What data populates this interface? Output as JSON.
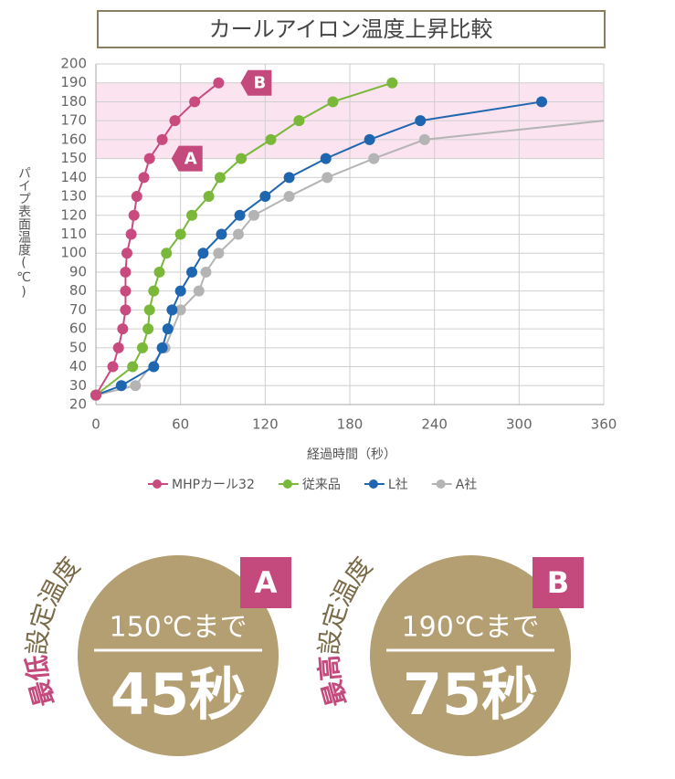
{
  "chart_data": {
    "type": "line",
    "title": "カールアイロン温度上昇比較",
    "x_label": "経過時間（秒）",
    "y_label": "パイプ表面温度(℃)",
    "xlim": [
      0,
      360
    ],
    "xticks": [
      0,
      60,
      120,
      180,
      240,
      300,
      360
    ],
    "ylim": [
      20,
      200
    ],
    "yticks": [
      20,
      30,
      40,
      50,
      60,
      70,
      80,
      90,
      100,
      110,
      120,
      130,
      140,
      150,
      160,
      170,
      180,
      190,
      200
    ],
    "grid": true,
    "highlight_band": [
      150,
      190
    ],
    "highlight_color": "#fbe3ef",
    "legend": "bottom",
    "series": [
      {
        "name": "MHPカール32",
        "color": "#c84b7f",
        "x": [
          0,
          12,
          16,
          19,
          21,
          21,
          21,
          22,
          25,
          27,
          29,
          34,
          38,
          47,
          56,
          70,
          87
        ],
        "values": [
          25,
          40,
          50,
          60,
          70,
          80,
          90,
          100,
          110,
          120,
          130,
          140,
          150,
          160,
          170,
          180,
          190
        ]
      },
      {
        "name": "従来品",
        "color": "#7ab83a",
        "x": [
          0,
          26,
          33,
          37,
          38,
          41,
          45,
          50,
          60,
          68,
          80,
          88,
          103,
          124,
          144,
          168,
          210
        ],
        "values": [
          25,
          40,
          50,
          60,
          70,
          80,
          90,
          100,
          110,
          120,
          130,
          140,
          150,
          160,
          170,
          180,
          190
        ]
      },
      {
        "name": "L社",
        "color": "#1f66b0",
        "x": [
          0,
          18,
          41,
          47,
          51,
          54,
          60,
          68,
          76,
          89,
          102,
          120,
          137,
          163,
          194,
          230,
          316
        ],
        "values": [
          25,
          30,
          40,
          50,
          60,
          70,
          80,
          90,
          100,
          110,
          120,
          130,
          140,
          150,
          160,
          170,
          180
        ]
      },
      {
        "name": "A社",
        "color": "#b4b4b4",
        "x": [
          0,
          28,
          49,
          60,
          73,
          78,
          87,
          101,
          112,
          137,
          164,
          197,
          233,
          360
        ],
        "values": [
          25,
          30,
          50,
          70,
          80,
          90,
          100,
          110,
          120,
          130,
          140,
          150,
          160,
          170
        ]
      }
    ],
    "annotations": [
      {
        "label": "A",
        "y": 150
      },
      {
        "label": "B",
        "y": 190
      }
    ]
  },
  "badges": [
    {
      "arc_accent": "最低",
      "arc_rest": "設定温度",
      "condition": "150℃まで",
      "time": "45秒",
      "tag": "A"
    },
    {
      "arc_accent": "最高",
      "arc_rest": "設定温度",
      "condition": "190℃まで",
      "time": "75秒",
      "tag": "B"
    }
  ]
}
